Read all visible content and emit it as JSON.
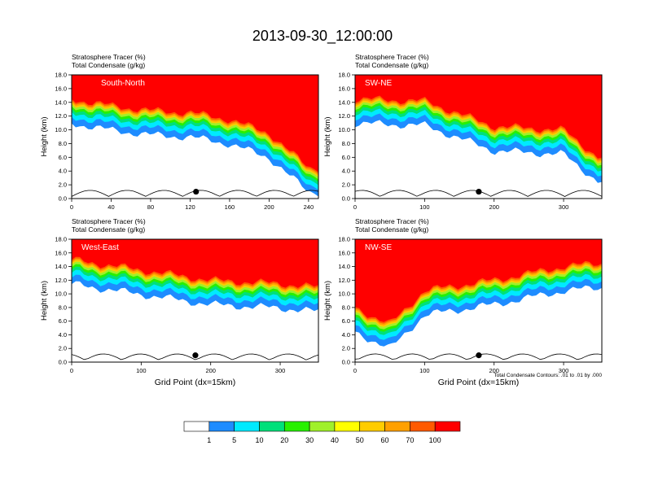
{
  "figure": {
    "title": "2013-09-30_12:00:00",
    "condensate_note": "Total Condensate Contours: .01 to .01 by .000",
    "ylabel": "Height (km)",
    "xlabel": "Grid Point (dx=15km)",
    "field_label_1": "Stratosphere Tracer   (%)",
    "field_label_2": "Total Condensate   (g/kg)"
  },
  "colors": {
    "levels": [
      "#ffffff",
      "#1e8cff",
      "#00eaff",
      "#00e07a",
      "#28f000",
      "#a0f02a",
      "#ffff00",
      "#ffcc00",
      "#ffa000",
      "#ff5a00",
      "#ff0000"
    ]
  },
  "colorbar": {
    "labels": [
      "1",
      "5",
      "10",
      "20",
      "30",
      "40",
      "50",
      "60",
      "70",
      "100"
    ]
  },
  "chart_data": [
    {
      "type": "heatmap",
      "name": "South-North",
      "ylim": [
        0,
        18
      ],
      "xlim": [
        0,
        250
      ],
      "xticks": [
        0,
        40,
        80,
        120,
        160,
        200,
        240
      ],
      "yticks": [
        "0.0",
        "2.0",
        "4.0",
        "6.0",
        "8.0",
        "10.0",
        "12.0",
        "14.0",
        "16.0",
        "18.0"
      ],
      "dot_x": 126,
      "tropopause_km_at": {
        "x": [
          0,
          40,
          80,
          120,
          160,
          200,
          240
        ],
        "km": [
          14.5,
          13.5,
          12.8,
          12.5,
          11.5,
          9.5,
          4.5
        ]
      }
    },
    {
      "type": "heatmap",
      "name": "SW-NE",
      "ylim": [
        0,
        18
      ],
      "xlim": [
        0,
        355
      ],
      "xticks": [
        0,
        100,
        200,
        300
      ],
      "yticks": [
        "0.0",
        "2.0",
        "4.0",
        "6.0",
        "8.0",
        "10.0",
        "12.0",
        "14.0",
        "16.0",
        "18.0"
      ],
      "dot_x": 178,
      "tropopause_km_at": {
        "x": [
          0,
          100,
          200,
          300,
          350
        ],
        "km": [
          14.5,
          14.2,
          10.5,
          10.0,
          6.0
        ]
      }
    },
    {
      "type": "heatmap",
      "name": "West-East",
      "ylim": [
        0,
        18
      ],
      "xlim": [
        0,
        355
      ],
      "xticks": [
        0,
        100,
        200,
        300
      ],
      "yticks": [
        "0.0",
        "2.0",
        "4.0",
        "6.0",
        "8.0",
        "10.0",
        "12.0",
        "14.0",
        "16.0",
        "18.0"
      ],
      "dot_x": 178,
      "tropopause_km_at": {
        "x": [
          0,
          100,
          200,
          300,
          350
        ],
        "km": [
          15.0,
          13.5,
          12.0,
          11.5,
          11.0
        ]
      }
    },
    {
      "type": "heatmap",
      "name": "NW-SE",
      "ylim": [
        0,
        18
      ],
      "xlim": [
        0,
        355
      ],
      "xticks": [
        0,
        100,
        200,
        300
      ],
      "yticks": [
        "0.0",
        "2.0",
        "4.0",
        "6.0",
        "8.0",
        "10.0",
        "12.0",
        "14.0",
        "16.0",
        "18.0"
      ],
      "dot_x": 178,
      "tropopause_km_at": {
        "x": [
          0,
          50,
          100,
          200,
          300,
          350
        ],
        "km": [
          8.0,
          5.5,
          10.5,
          12.0,
          14.0,
          14.5
        ]
      }
    }
  ]
}
